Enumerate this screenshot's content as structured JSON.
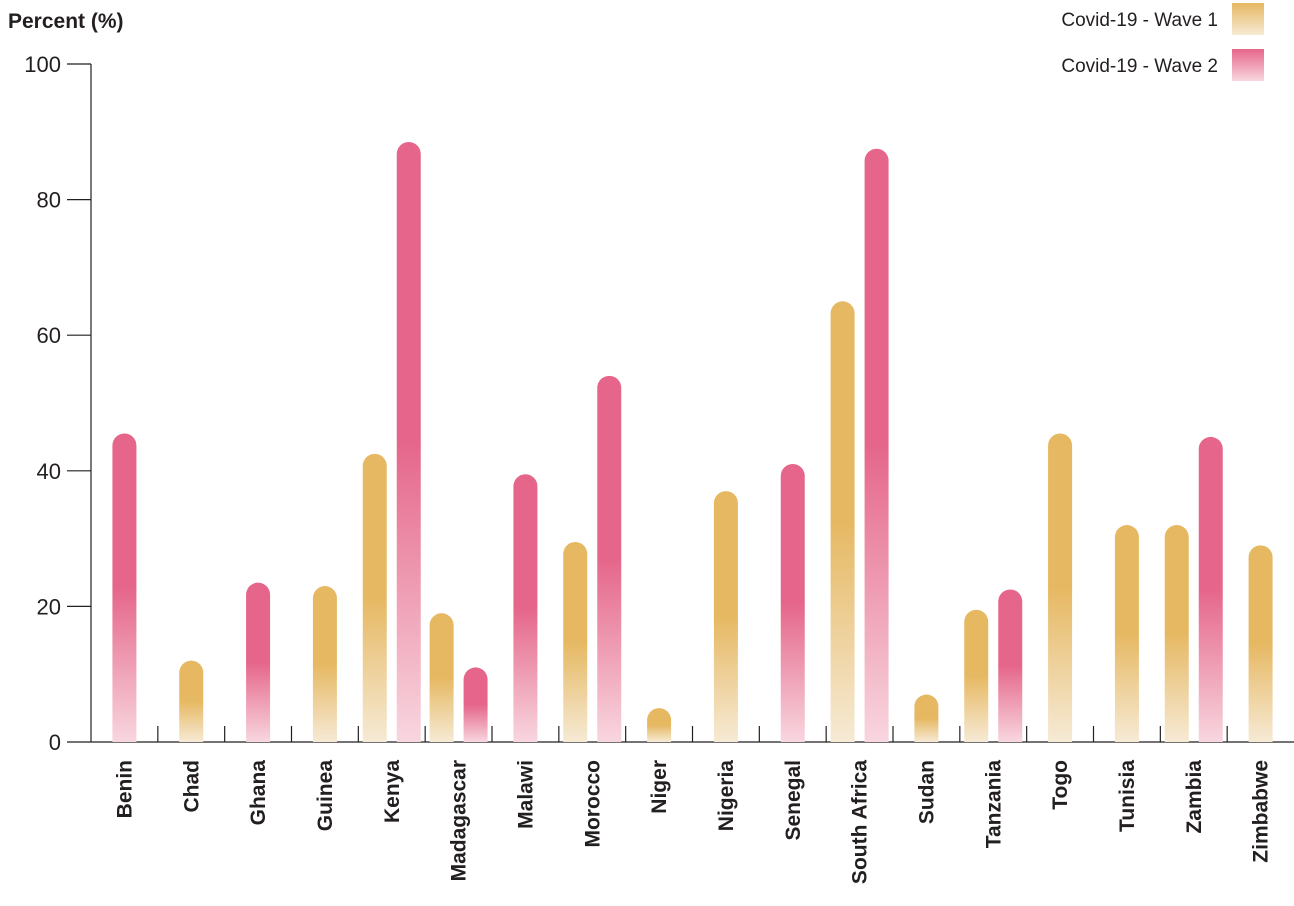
{
  "chart_data": {
    "type": "bar",
    "title": "",
    "xlabel": "",
    "ylabel": "Percent (%)",
    "ylim": [
      0,
      100
    ],
    "yticks": [
      "0",
      "20",
      "40",
      "60",
      "80",
      "100"
    ],
    "categories": [
      "Benin",
      "Chad",
      "Ghana",
      "Guinea",
      "Kenya",
      "Madagascar",
      "Malawi",
      "Morocco",
      "Niger",
      "Nigeria",
      "Senegal",
      "South Africa",
      "Sudan",
      "Tanzania",
      "Togo",
      "Tunisia",
      "Zambia",
      "Zimbabwe"
    ],
    "series": [
      {
        "name": "Covid-19 - Wave 1",
        "color": "#e6b862",
        "values": [
          null,
          12,
          null,
          23,
          42.5,
          19,
          null,
          29.5,
          5,
          37,
          null,
          65,
          7,
          19.5,
          45.5,
          32,
          32,
          29
        ]
      },
      {
        "name": "Covid-19 - Wave 2",
        "color": "#e5668a",
        "values": [
          45.5,
          null,
          23.5,
          null,
          88.5,
          11,
          39.5,
          54,
          null,
          null,
          41,
          87.5,
          null,
          22.5,
          null,
          null,
          45,
          null
        ]
      }
    ],
    "grid": false,
    "legend_position": "top-right"
  }
}
